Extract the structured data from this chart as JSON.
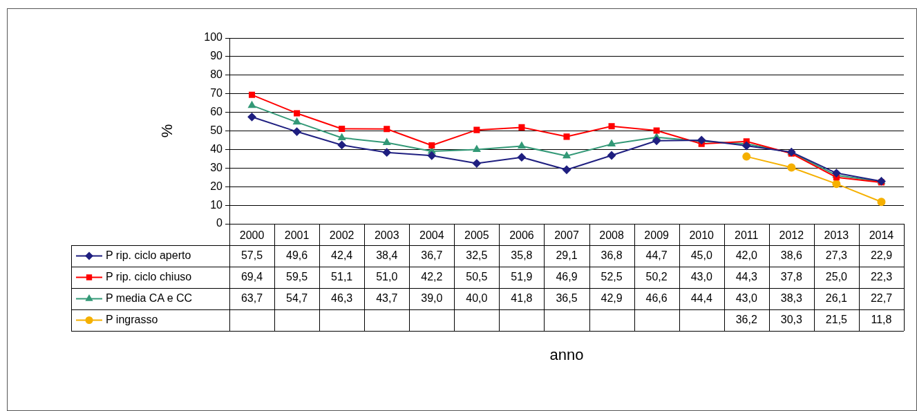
{
  "chart_data": {
    "type": "line",
    "annotations": [
      "anno"
    ],
    "ylabel": "%",
    "categories": [
      "2000",
      "2001",
      "2002",
      "2003",
      "2004",
      "2005",
      "2006",
      "2007",
      "2008",
      "2009",
      "2010",
      "2011",
      "2012",
      "2013",
      "2014"
    ],
    "series": [
      {
        "name": "P rip. ciclo aperto",
        "color": "#1f1f80",
        "marker": "diamond",
        "values": [
          57.5,
          49.6,
          42.4,
          38.4,
          36.7,
          32.5,
          35.8,
          29.1,
          36.8,
          44.7,
          45.0,
          42.0,
          38.6,
          27.3,
          22.9
        ],
        "value_labels": [
          "57,5",
          "49,6",
          "42,4",
          "38,4",
          "36,7",
          "32,5",
          "35,8",
          "29,1",
          "36,8",
          "44,7",
          "45,0",
          "42,0",
          "38,6",
          "27,3",
          "22,9"
        ]
      },
      {
        "name": "P rip. ciclo chiuso",
        "color": "#ff0000",
        "marker": "square",
        "values": [
          69.4,
          59.5,
          51.1,
          51.0,
          42.2,
          50.5,
          51.9,
          46.9,
          52.5,
          50.2,
          43.0,
          44.3,
          37.8,
          25.0,
          22.3
        ],
        "value_labels": [
          "69,4",
          "59,5",
          "51,1",
          "51,0",
          "42,2",
          "50,5",
          "51,9",
          "46,9",
          "52,5",
          "50,2",
          "43,0",
          "44,3",
          "37,8",
          "25,0",
          "22,3"
        ]
      },
      {
        "name": "P media CA e CC",
        "color": "#339977",
        "marker": "triangle",
        "values": [
          63.7,
          54.7,
          46.3,
          43.7,
          39.0,
          40.0,
          41.8,
          36.5,
          42.9,
          46.6,
          44.4,
          43.0,
          38.3,
          26.1,
          22.7
        ],
        "value_labels": [
          "63,7",
          "54,7",
          "46,3",
          "43,7",
          "39,0",
          "40,0",
          "41,8",
          "36,5",
          "42,9",
          "46,6",
          "44,4",
          "43,0",
          "38,3",
          "26,1",
          "22,7"
        ]
      },
      {
        "name": "P ingrasso",
        "color": "#f5b000",
        "marker": "circle",
        "values": [
          null,
          null,
          null,
          null,
          null,
          null,
          null,
          null,
          null,
          null,
          null,
          36.2,
          30.3,
          21.5,
          11.8
        ],
        "value_labels": [
          null,
          null,
          null,
          null,
          null,
          null,
          null,
          null,
          null,
          null,
          null,
          "36,2",
          "30,3",
          "21,5",
          "11,8"
        ]
      }
    ],
    "ylim": [
      0,
      100
    ],
    "yticks": [
      0,
      10,
      20,
      30,
      40,
      50,
      60,
      70,
      80,
      90,
      100
    ],
    "grid": "y",
    "legend": "bottom"
  }
}
